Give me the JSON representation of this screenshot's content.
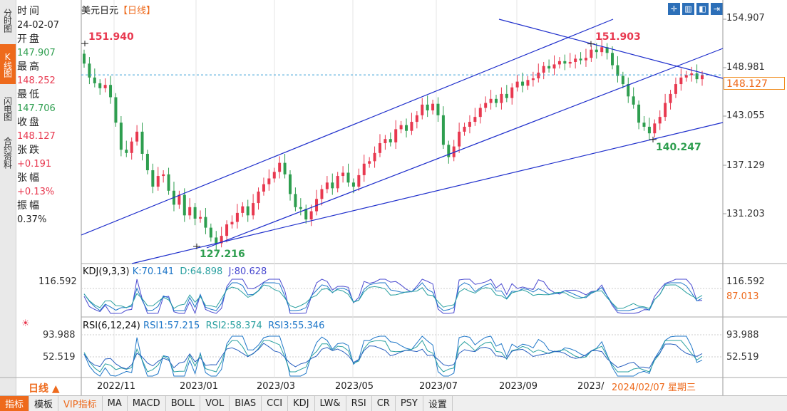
{
  "sidebar": {
    "tabs": [
      {
        "label": "分时图",
        "active": false
      },
      {
        "label": "K线图",
        "active": true
      },
      {
        "label": "闪电图",
        "active": false
      },
      {
        "label": "合约资料",
        "active": false
      }
    ]
  },
  "header": {
    "symbol": "美元日元",
    "period": "【日线】"
  },
  "info_panel": [
    {
      "label": "时间",
      "value": "24-02-07",
      "tone": "neutral"
    },
    {
      "label": "开盘",
      "value": "147.907",
      "tone": "down"
    },
    {
      "label": "最高",
      "value": "148.252",
      "tone": "up"
    },
    {
      "label": "最低",
      "value": "147.706",
      "tone": "down"
    },
    {
      "label": "收盘",
      "value": "148.127",
      "tone": "up"
    },
    {
      "label": "张跌",
      "value": "+0.191",
      "tone": "up"
    },
    {
      "label": "张幅",
      "value": "+0.13%",
      "tone": "up"
    },
    {
      "label": "振幅",
      "value": "0.37%",
      "tone": "neutral"
    }
  ],
  "toolbar_icons": [
    "crosshair-icon",
    "candle-style-icon",
    "chart-mode-icon",
    "fullscreen-icon"
  ],
  "price_axis": {
    "labels": [
      "154.907",
      "148.981",
      "143.055",
      "137.129",
      "131.203"
    ],
    "current_price": "148.127"
  },
  "annotations": {
    "high_left": "151.940",
    "high_right": "151.903",
    "low_left": "127.216",
    "low_right": "140.247"
  },
  "kdj": {
    "name": "KDJ(9,3,3)",
    "k": "K:70.141",
    "d": "D:64.898",
    "j": "J:80.628",
    "axis_top": "116.592",
    "axis_right_top": "116.592",
    "current": "87.013"
  },
  "rsi": {
    "name": "RSI(6,12,24)",
    "rsi1": "RSI1:57.215",
    "rsi2": "RSI2:58.374",
    "rsi3": "RSI3:55.346",
    "axis_top": "93.988",
    "axis_mid": "52.519",
    "axis_right_top": "93.988",
    "axis_right_mid": "52.519"
  },
  "x_axis": [
    "2022/11",
    "2023/01",
    "2023/03",
    "2023/05",
    "2023/07",
    "2023/09",
    "2023/"
  ],
  "cursor_date": "2024/02/07 星期三",
  "period_button": "日线 ▲",
  "bottom_tabs": [
    {
      "label": "指标",
      "active": true,
      "vip": false
    },
    {
      "label": "模板",
      "active": false,
      "vip": false
    },
    {
      "label": "VIP指标",
      "active": false,
      "vip": true
    },
    {
      "label": "MA",
      "active": false,
      "vip": false
    },
    {
      "label": "MACD",
      "active": false,
      "vip": false
    },
    {
      "label": "BOLL",
      "active": false,
      "vip": false
    },
    {
      "label": "VOL",
      "active": false,
      "vip": false
    },
    {
      "label": "BIAS",
      "active": false,
      "vip": false
    },
    {
      "label": "CCI",
      "active": false,
      "vip": false
    },
    {
      "label": "KDJ",
      "active": false,
      "vip": false
    },
    {
      "label": "LW&",
      "active": false,
      "vip": false
    },
    {
      "label": "RSI",
      "active": false,
      "vip": false
    },
    {
      "label": "CR",
      "active": false,
      "vip": false
    },
    {
      "label": "PSY",
      "active": false,
      "vip": false
    },
    {
      "label": "设置",
      "active": false,
      "vip": false
    }
  ],
  "colors": {
    "up": "#e8384f",
    "down": "#2e9e4f",
    "accent": "#ee6a1c",
    "trendline": "#1f2fcc",
    "kdj_k": "#1f77c8",
    "kdj_d": "#2aa0a0",
    "kdj_j": "#4a4ad0"
  },
  "chart_data": {
    "type": "candlestick",
    "series_name": "美元日元",
    "period": "daily",
    "x_range": [
      "2022/10",
      "2024/02/07"
    ],
    "y_range": [
      125,
      155
    ],
    "latest": {
      "date": "2024/02/07",
      "open": 147.907,
      "high": 148.252,
      "low": 147.706,
      "close": 148.127
    },
    "key_points": [
      {
        "date": "2022/10",
        "value": 151.94,
        "label": "high"
      },
      {
        "date": "2023/01",
        "value": 127.216,
        "label": "low"
      },
      {
        "date": "2023/11",
        "value": 151.903,
        "label": "high"
      },
      {
        "date": "2023/12",
        "value": 140.247,
        "label": "low"
      }
    ],
    "closes": [
      149.5,
      147.8,
      147.1,
      146.5,
      146.9,
      145.4,
      142.3,
      139.0,
      138.6,
      140.0,
      141.2,
      138.5,
      136.5,
      134.5,
      135.8,
      136.0,
      134.0,
      132.3,
      133.5,
      131.0,
      132.0,
      130.6,
      130.8,
      129.5,
      128.3,
      127.6,
      128.5,
      129.9,
      130.2,
      131.3,
      132.1,
      131.0,
      132.5,
      133.9,
      134.8,
      135.5,
      136.3,
      137.4,
      136.0,
      133.6,
      132.0,
      131.8,
      130.5,
      131.5,
      133.0,
      134.2,
      135.0,
      134.3,
      135.8,
      136.2,
      135.0,
      134.5,
      135.9,
      137.3,
      137.6,
      138.6,
      139.8,
      140.3,
      139.9,
      141.5,
      142.0,
      141.3,
      142.4,
      143.2,
      144.5,
      143.8,
      144.6,
      143.2,
      139.6,
      138.1,
      139.4,
      141.2,
      141.8,
      142.4,
      143.0,
      144.1,
      144.7,
      145.2,
      144.7,
      145.8,
      145.3,
      146.6,
      147.3,
      146.8,
      147.5,
      147.7,
      148.4,
      149.2,
      148.9,
      149.4,
      149.8,
      149.5,
      149.7,
      150.1,
      149.9,
      150.2,
      151.2,
      150.9,
      151.5,
      150.8,
      149.3,
      148.0,
      147.0,
      145.5,
      144.5,
      142.3,
      141.8,
      141.0,
      142.2,
      143.0,
      144.7,
      145.8,
      147.0,
      147.8,
      148.1,
      148.3,
      147.6,
      148.1
    ],
    "indicators": {
      "KDJ(9,3,3)": {
        "K": 70.141,
        "D": 64.898,
        "J": 80.628
      },
      "RSI(6,12,24)": {
        "RSI1": 57.215,
        "RSI2": 58.374,
        "RSI3": 55.346
      }
    },
    "trendlines": "blue channel lines drawn across the price pane",
    "grid": true
  }
}
